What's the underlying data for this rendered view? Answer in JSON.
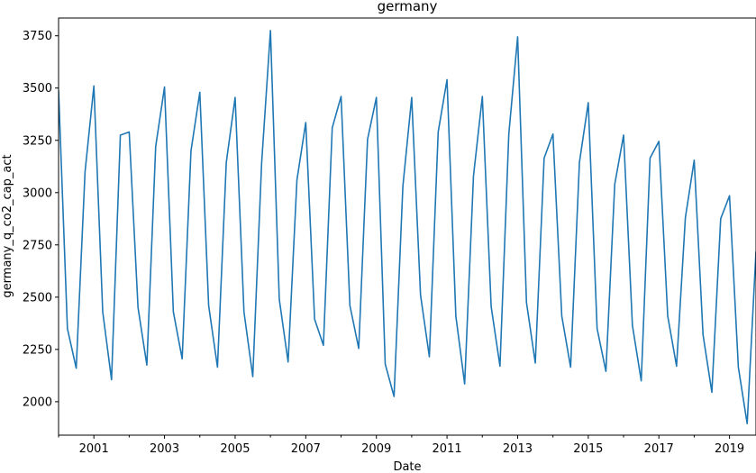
{
  "chart_data": {
    "type": "line",
    "title": "germany",
    "xlabel": "Date",
    "ylabel": "germany_q_co2_cap_act",
    "x_ticks": [
      "2001",
      "2003",
      "2005",
      "2007",
      "2009",
      "2011",
      "2013",
      "2015",
      "2017",
      "2019"
    ],
    "y_ticks": [
      2000,
      2250,
      2500,
      2750,
      3000,
      3250,
      3500,
      3750
    ],
    "xlim": [
      "2000-01",
      "2019-10"
    ],
    "ylim": [
      1840,
      3835
    ],
    "grid": false,
    "legend": "none",
    "series": [
      {
        "color": "#1f77b4",
        "x": [
          "2000-01",
          "2000-04",
          "2000-07",
          "2000-10",
          "2001-01",
          "2001-04",
          "2001-07",
          "2001-10",
          "2002-01",
          "2002-04",
          "2002-07",
          "2002-10",
          "2003-01",
          "2003-04",
          "2003-07",
          "2003-10",
          "2004-01",
          "2004-04",
          "2004-07",
          "2004-10",
          "2005-01",
          "2005-04",
          "2005-07",
          "2005-10",
          "2006-01",
          "2006-04",
          "2006-07",
          "2006-10",
          "2007-01",
          "2007-04",
          "2007-07",
          "2007-10",
          "2008-01",
          "2008-04",
          "2008-07",
          "2008-10",
          "2009-01",
          "2009-04",
          "2009-07",
          "2009-10",
          "2010-01",
          "2010-04",
          "2010-07",
          "2010-10",
          "2011-01",
          "2011-04",
          "2011-07",
          "2011-10",
          "2012-01",
          "2012-04",
          "2012-07",
          "2012-10",
          "2013-01",
          "2013-04",
          "2013-07",
          "2013-10",
          "2014-01",
          "2014-04",
          "2014-07",
          "2014-10",
          "2015-01",
          "2015-04",
          "2015-07",
          "2015-10",
          "2016-01",
          "2016-04",
          "2016-07",
          "2016-10",
          "2017-01",
          "2017-04",
          "2017-07",
          "2017-10",
          "2018-01",
          "2018-04",
          "2018-07",
          "2018-10",
          "2019-01",
          "2019-04",
          "2019-07",
          "2019-10"
        ],
        "values": [
          3490,
          2350,
          2160,
          3100,
          3510,
          2430,
          2105,
          3275,
          3290,
          2450,
          2175,
          3220,
          3505,
          2430,
          2205,
          3200,
          3480,
          2460,
          2165,
          3145,
          3455,
          2430,
          2120,
          3140,
          3775,
          2490,
          2190,
          3060,
          3335,
          2395,
          2270,
          3310,
          3460,
          2460,
          2255,
          3255,
          3455,
          2180,
          2025,
          3030,
          3455,
          2510,
          2215,
          3290,
          3540,
          2410,
          2085,
          3080,
          3460,
          2455,
          2170,
          3280,
          3745,
          2475,
          2185,
          3165,
          3280,
          2410,
          2165,
          3145,
          3430,
          2350,
          2145,
          3040,
          3275,
          2365,
          2100,
          3165,
          3245,
          2410,
          2170,
          2880,
          3155,
          2320,
          2045,
          2875,
          2985,
          2165,
          1895,
          2720
        ]
      }
    ]
  }
}
